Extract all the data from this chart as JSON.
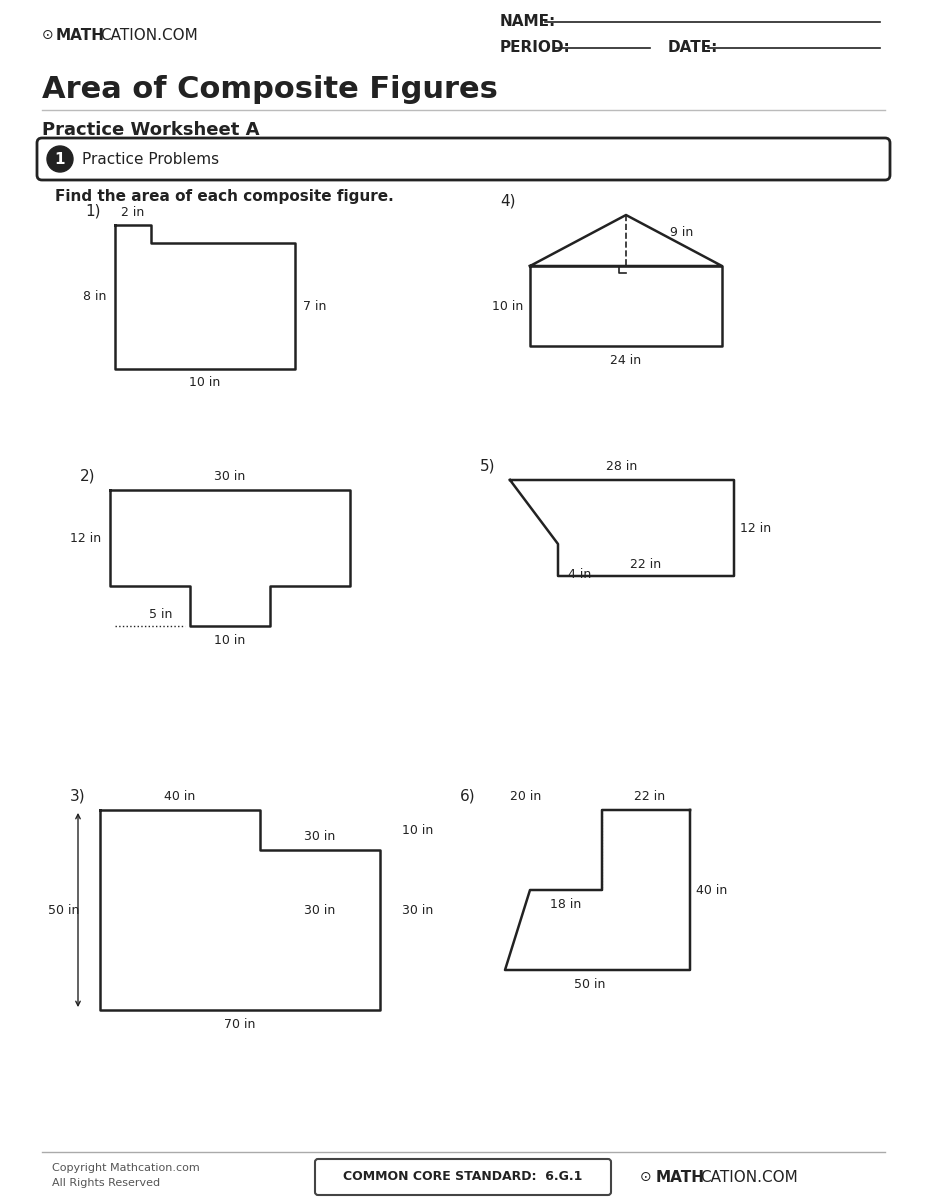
{
  "title": "Area of Composite Figures",
  "subtitle": "Practice Worksheet A",
  "section_label": "1",
  "section_title": "Practice Problems",
  "instruction": "Find the area of each composite figure.",
  "header_name": "NAME:",
  "header_period": "PERIOD:",
  "header_date": "DATE:",
  "footer_copyright": "Copyright Mathcation.com\nAll Rights Reserved",
  "footer_standard": "COMMON CORE STANDARD:  6.G.1",
  "background_color": "#ffffff",
  "text_color": "#1a1a1a",
  "figure_color": "#222222"
}
